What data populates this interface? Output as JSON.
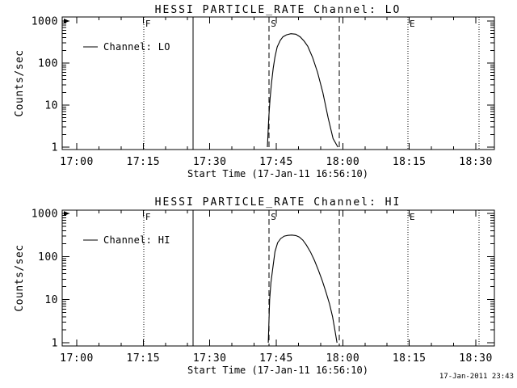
{
  "window": {
    "background": "#ffffff",
    "foreground": "#000000"
  },
  "footer": {
    "timestamp": "17-Jan-2011 23:43"
  },
  "chart_data": [
    {
      "type": "line",
      "title": "HESSI PARTICLE_RATE Channel: LO",
      "xlabel": "Start Time (17-Jan-11 16:56:10)",
      "ylabel": "Counts/sec",
      "legend_position": "upper-left",
      "grid": false,
      "y_axis": {
        "scale": "log",
        "range": [
          1,
          1000
        ],
        "ticks": [
          {
            "value": 1,
            "label": "1"
          },
          {
            "value": 10,
            "label": "10"
          },
          {
            "value": 100,
            "label": "100"
          },
          {
            "value": 1000,
            "label": "1000"
          }
        ]
      },
      "x_axis": {
        "reference_time": "17:00",
        "xlim_minutes": [
          -3.3,
          94.2
        ],
        "minor_tick_every_minutes": 5,
        "major_ticks": [
          {
            "minute": 0,
            "label": "17:00"
          },
          {
            "minute": 15,
            "label": "17:15"
          },
          {
            "minute": 30,
            "label": "17:30"
          },
          {
            "minute": 45,
            "label": "17:45"
          },
          {
            "minute": 60,
            "label": "18:00"
          },
          {
            "minute": 75,
            "label": "18:15"
          },
          {
            "minute": 90,
            "label": "18:30"
          }
        ]
      },
      "event_lines": [
        {
          "minute": 15.1,
          "style": "dotted",
          "flag": "F"
        },
        {
          "minute": 26.2,
          "style": "solid",
          "flag": ""
        },
        {
          "minute": 43.4,
          "style": "dashed",
          "flag": "S"
        },
        {
          "minute": 59.2,
          "style": "dashed",
          "flag": ""
        },
        {
          "minute": 74.7,
          "style": "dotted",
          "flag": "E"
        },
        {
          "minute": 90.7,
          "style": "dotted",
          "flag": ""
        }
      ],
      "series": [
        {
          "name": "Channel: LO",
          "units": "counts/sec",
          "points": [
            [
              43.0,
              1
            ],
            [
              43.3,
              5
            ],
            [
              43.6,
              14
            ],
            [
              43.9,
              32
            ],
            [
              44.3,
              75
            ],
            [
              44.7,
              140
            ],
            [
              45.2,
              240
            ],
            [
              45.9,
              345
            ],
            [
              46.5,
              420
            ],
            [
              47.3,
              470
            ],
            [
              48.3,
              500
            ],
            [
              49.4,
              485
            ],
            [
              50.4,
              420
            ],
            [
              51.3,
              330
            ],
            [
              52.1,
              250
            ],
            [
              53.2,
              135
            ],
            [
              54.3,
              60
            ],
            [
              55.5,
              20
            ],
            [
              56.7,
              5
            ],
            [
              57.8,
              1.6
            ],
            [
              58.9,
              1
            ]
          ]
        }
      ]
    },
    {
      "type": "line",
      "title": "HESSI PARTICLE_RATE Channel: HI",
      "xlabel": "Start Time (17-Jan-11 16:56:10)",
      "ylabel": "Counts/sec",
      "legend_position": "upper-left",
      "grid": false,
      "y_axis": {
        "scale": "log",
        "range": [
          1,
          1000
        ],
        "ticks": [
          {
            "value": 1,
            "label": "1"
          },
          {
            "value": 10,
            "label": "10"
          },
          {
            "value": 100,
            "label": "100"
          },
          {
            "value": 1000,
            "label": "1000"
          }
        ]
      },
      "x_axis": {
        "reference_time": "17:00",
        "xlim_minutes": [
          -3.3,
          94.2
        ],
        "minor_tick_every_minutes": 5,
        "major_ticks": [
          {
            "minute": 0,
            "label": "17:00"
          },
          {
            "minute": 15,
            "label": "17:15"
          },
          {
            "minute": 30,
            "label": "17:30"
          },
          {
            "minute": 45,
            "label": "17:45"
          },
          {
            "minute": 60,
            "label": "18:00"
          },
          {
            "minute": 75,
            "label": "18:15"
          },
          {
            "minute": 90,
            "label": "18:30"
          }
        ]
      },
      "event_lines": [
        {
          "minute": 15.1,
          "style": "dotted",
          "flag": "F"
        },
        {
          "minute": 26.2,
          "style": "solid",
          "flag": ""
        },
        {
          "minute": 43.4,
          "style": "dashed",
          "flag": "S"
        },
        {
          "minute": 59.2,
          "style": "dashed",
          "flag": ""
        },
        {
          "minute": 74.7,
          "style": "dotted",
          "flag": "E"
        },
        {
          "minute": 90.7,
          "style": "dotted",
          "flag": ""
        }
      ],
      "series": [
        {
          "name": "Channel: HI",
          "units": "counts/sec",
          "points": [
            [
              43.2,
              1
            ],
            [
              43.5,
              10
            ],
            [
              43.8,
              25
            ],
            [
              44.2,
              52
            ],
            [
              44.7,
              130
            ],
            [
              45.3,
              210
            ],
            [
              46.0,
              262
            ],
            [
              46.8,
              298
            ],
            [
              47.6,
              310
            ],
            [
              48.5,
              315
            ],
            [
              49.4,
              308
            ],
            [
              50.2,
              285
            ],
            [
              51.0,
              240
            ],
            [
              51.8,
              185
            ],
            [
              52.7,
              128
            ],
            [
              53.6,
              82
            ],
            [
              54.5,
              48
            ],
            [
              55.4,
              27
            ],
            [
              56.2,
              15
            ],
            [
              57.0,
              8
            ],
            [
              57.7,
              4
            ],
            [
              58.2,
              2
            ],
            [
              58.7,
              1
            ]
          ]
        }
      ]
    }
  ]
}
